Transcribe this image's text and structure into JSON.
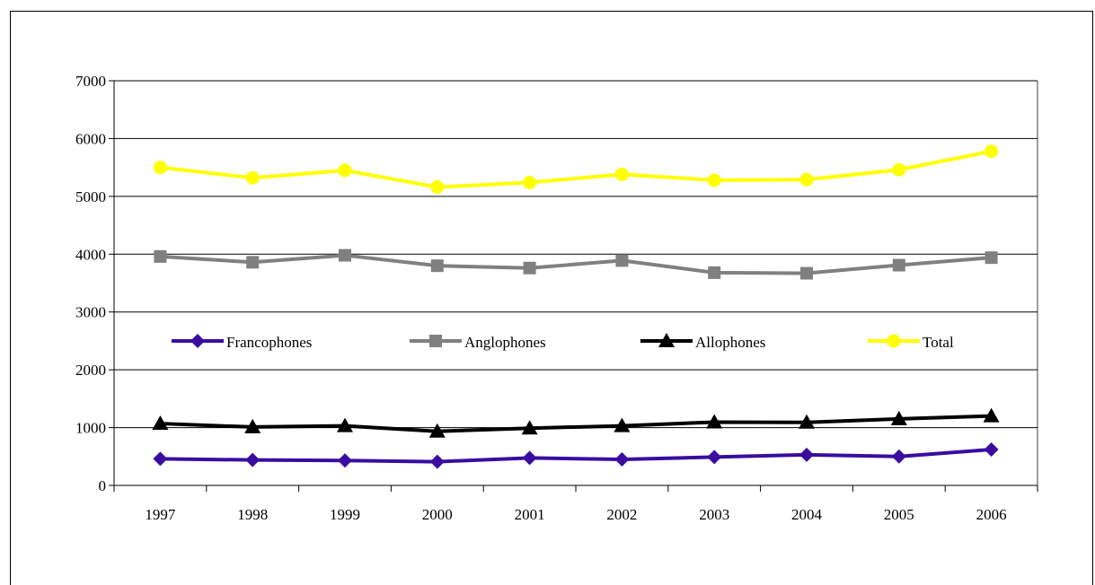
{
  "chart_data": {
    "type": "line",
    "categories": [
      "1997",
      "1998",
      "1999",
      "2000",
      "2001",
      "2002",
      "2003",
      "2004",
      "2005",
      "2006"
    ],
    "ylim": [
      0,
      7000
    ],
    "yticks": [
      "0",
      "1000",
      "2000",
      "3000",
      "4000",
      "5000",
      "6000",
      "7000"
    ],
    "grid": true,
    "legend_position": "middle, inside plot",
    "series": [
      {
        "name": "Francophones",
        "color": "#3a0da0",
        "marker": "diamond",
        "values": [
          460,
          440,
          430,
          410,
          475,
          450,
          490,
          530,
          500,
          620
        ]
      },
      {
        "name": "Anglophones",
        "color": "#808080",
        "marker": "square",
        "values": [
          3960,
          3860,
          3980,
          3800,
          3760,
          3890,
          3680,
          3670,
          3810,
          3940
        ]
      },
      {
        "name": "Allophones",
        "color": "#000000",
        "marker": "triangle",
        "values": [
          1070,
          1010,
          1030,
          935,
          990,
          1030,
          1095,
          1090,
          1150,
          1200
        ]
      },
      {
        "name": "Total",
        "color": "#ffff00",
        "marker": "circle",
        "values": [
          5500,
          5320,
          5450,
          5160,
          5240,
          5380,
          5280,
          5290,
          5460,
          5780
        ]
      }
    ]
  }
}
